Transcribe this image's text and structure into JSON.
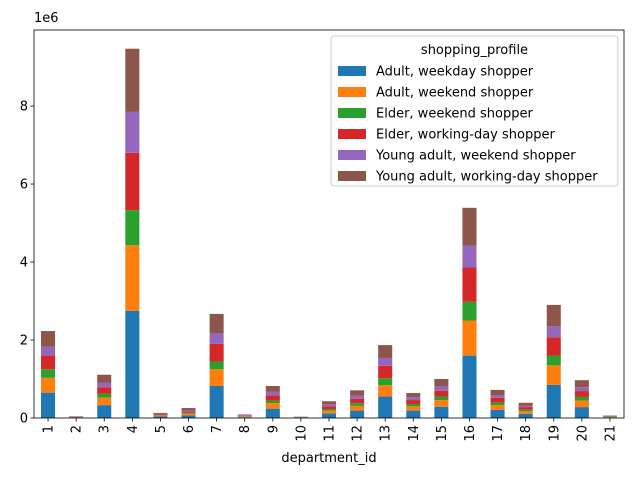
{
  "chart_data": {
    "type": "bar",
    "stacked": true,
    "xlabel": "department_id",
    "ylabel": "",
    "offset_text": "1e6",
    "categories": [
      "1",
      "2",
      "3",
      "4",
      "5",
      "6",
      "7",
      "8",
      "9",
      "10",
      "11",
      "12",
      "13",
      "14",
      "15",
      "16",
      "17",
      "18",
      "19",
      "20",
      "21"
    ],
    "ylim": [
      0,
      9.95
    ],
    "yticks": [
      0,
      2,
      4,
      6,
      8
    ],
    "grid": false,
    "legend": {
      "title": "shopping_profile",
      "placement": "top-right"
    },
    "series": [
      {
        "name": "Adult, weekday shopper",
        "color": "#1f77b4",
        "values": [
          0.65,
          0.01,
          0.33,
          2.75,
          0.04,
          0.07,
          0.82,
          0.02,
          0.24,
          0.01,
          0.12,
          0.19,
          0.55,
          0.19,
          0.29,
          1.6,
          0.21,
          0.11,
          0.85,
          0.28,
          0.02
        ]
      },
      {
        "name": "Adult, weekend shopper",
        "color": "#ff7f0e",
        "values": [
          0.38,
          0.005,
          0.19,
          1.68,
          0.02,
          0.045,
          0.43,
          0.015,
          0.14,
          0.005,
          0.07,
          0.12,
          0.29,
          0.11,
          0.17,
          0.9,
          0.12,
          0.07,
          0.5,
          0.17,
          0.01
        ]
      },
      {
        "name": "Elder, weekend shopper",
        "color": "#2ca02c",
        "values": [
          0.22,
          0.005,
          0.1,
          0.9,
          0.01,
          0.02,
          0.2,
          0.01,
          0.07,
          0.005,
          0.04,
          0.07,
          0.18,
          0.06,
          0.09,
          0.48,
          0.07,
          0.04,
          0.25,
          0.09,
          0.01
        ]
      },
      {
        "name": "Elder, working-day shopper",
        "color": "#d62728",
        "values": [
          0.35,
          0.01,
          0.17,
          1.47,
          0.02,
          0.04,
          0.45,
          0.015,
          0.13,
          0.005,
          0.07,
          0.11,
          0.32,
          0.1,
          0.15,
          0.88,
          0.12,
          0.06,
          0.47,
          0.15,
          0.01
        ]
      },
      {
        "name": "Young adult, weekend shopper",
        "color": "#9467bd",
        "values": [
          0.23,
          0.005,
          0.12,
          1.05,
          0.015,
          0.03,
          0.27,
          0.01,
          0.09,
          0.005,
          0.05,
          0.08,
          0.2,
          0.07,
          0.11,
          0.56,
          0.07,
          0.04,
          0.28,
          0.1,
          0.005
        ]
      },
      {
        "name": "Young adult, working-day shopper",
        "color": "#8c564b",
        "values": [
          0.4,
          0.01,
          0.2,
          1.62,
          0.025,
          0.05,
          0.5,
          0.02,
          0.15,
          0.005,
          0.08,
          0.14,
          0.33,
          0.11,
          0.19,
          0.97,
          0.13,
          0.07,
          0.55,
          0.18,
          0.01
        ]
      }
    ]
  }
}
